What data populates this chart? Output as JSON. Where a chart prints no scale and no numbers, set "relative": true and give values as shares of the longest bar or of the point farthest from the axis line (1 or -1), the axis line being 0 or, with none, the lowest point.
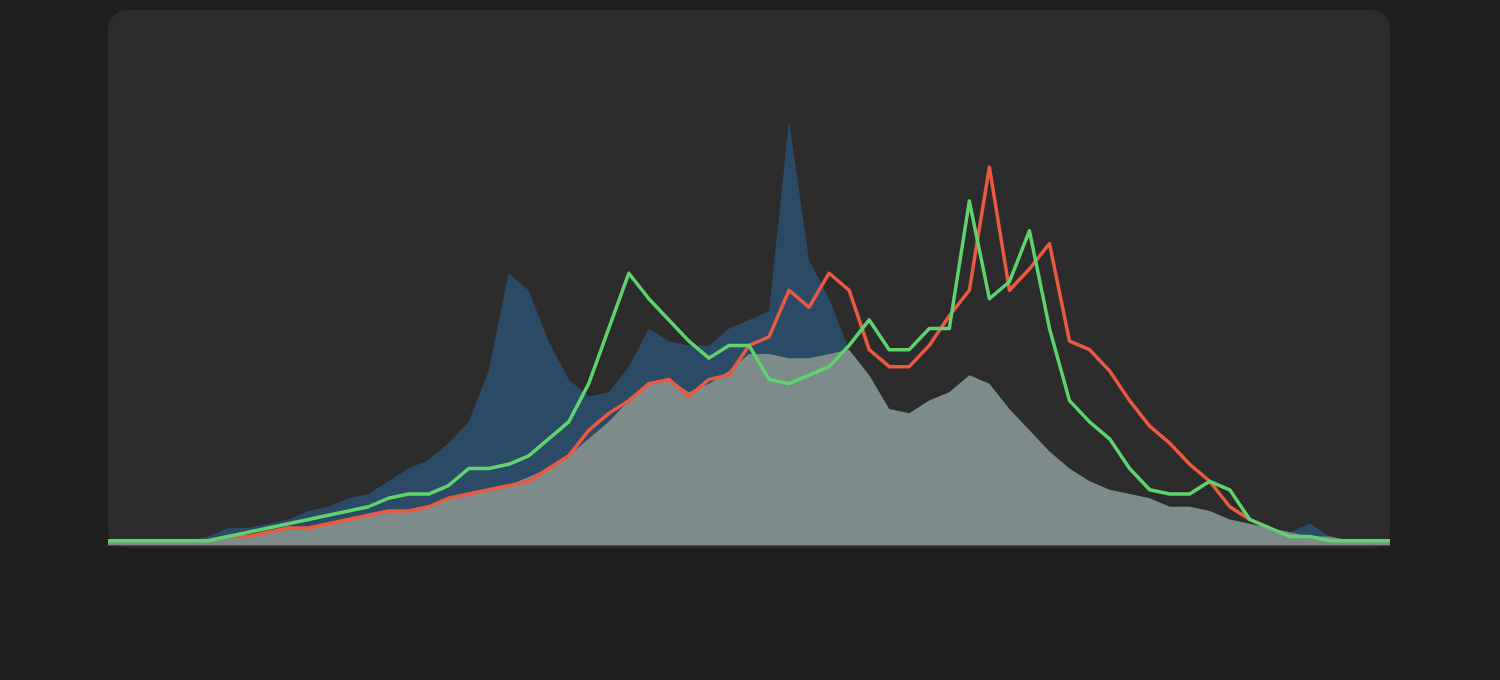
{
  "chart_data": {
    "type": "area",
    "relative": true,
    "categories": [
      null,
      null,
      null,
      null,
      null,
      null,
      null,
      null,
      null,
      null,
      null,
      null,
      null,
      null,
      null,
      null,
      null,
      null,
      null,
      null,
      null,
      null,
      null,
      null,
      null,
      null,
      null,
      null,
      null,
      null,
      null,
      null,
      null,
      null,
      null,
      null,
      null,
      null,
      null,
      null,
      null,
      null,
      null,
      null,
      null,
      null,
      null,
      null,
      null,
      null,
      null,
      null,
      null,
      null,
      null,
      null,
      null,
      null,
      null,
      null,
      null,
      null,
      null,
      null,
      null
    ],
    "series": [
      {
        "color": "#2b4a66",
        "values": [
          0.01,
          0.01,
          0.01,
          0.01,
          0.01,
          0.02,
          0.04,
          0.04,
          0.05,
          0.06,
          0.08,
          0.09,
          0.11,
          0.12,
          0.15,
          0.18,
          0.2,
          0.24,
          0.29,
          0.41,
          0.64,
          0.6,
          0.48,
          0.39,
          0.35,
          0.36,
          0.42,
          0.51,
          0.48,
          0.47,
          0.47,
          0.51,
          0.53,
          0.55,
          1,
          0.67,
          0.58,
          0.46,
          0.4,
          0.32,
          0.31,
          0.34,
          0.36,
          0.4,
          0.38,
          0.32,
          0.27,
          0.22,
          0.18,
          0.15,
          0.13,
          0.12,
          0.11,
          0.09,
          0.09,
          0.08,
          0.06,
          0.05,
          0.04,
          0.03,
          0.05,
          0.02,
          0.01,
          0.01,
          0.01
        ]
      },
      {
        "color": "#7d8b8b",
        "values": [
          0.01,
          0.01,
          0.01,
          0.01,
          0.01,
          0.01,
          0.02,
          0.02,
          0.03,
          0.04,
          0.04,
          0.05,
          0.06,
          0.07,
          0.08,
          0.08,
          0.09,
          0.11,
          0.12,
          0.13,
          0.14,
          0.16,
          0.18,
          0.21,
          0.25,
          0.29,
          0.34,
          0.38,
          0.39,
          0.36,
          0.38,
          0.41,
          0.45,
          0.45,
          0.44,
          0.44,
          0.45,
          0.46,
          0.4,
          0.32,
          0.31,
          0.34,
          0.36,
          0.4,
          0.38,
          0.32,
          0.27,
          0.22,
          0.18,
          0.15,
          0.13,
          0.12,
          0.11,
          0.09,
          0.09,
          0.08,
          0.06,
          0.05,
          0.04,
          0.03,
          0.02,
          0.02,
          0.01,
          0.01,
          0.01
        ]
      },
      {
        "type": "line",
        "color": "#ea5a43",
        "values": [
          null,
          null,
          null,
          null,
          null,
          0.01,
          0.02,
          0.02,
          0.03,
          0.04,
          0.04,
          0.05,
          0.06,
          0.07,
          0.08,
          0.08,
          0.09,
          0.11,
          0.12,
          0.13,
          0.14,
          0.15,
          0.18,
          0.21,
          0.27,
          0.31,
          0.34,
          0.38,
          0.39,
          0.35,
          0.39,
          0.4,
          0.47,
          0.49,
          0.6,
          0.56,
          0.64,
          0.6,
          0.46,
          0.42,
          0.42,
          0.47,
          0.54,
          0.6,
          0.89,
          0.6,
          0.65,
          0.71,
          0.48,
          0.46,
          0.41,
          0.34,
          0.28,
          0.24,
          0.19,
          0.15,
          0.09,
          0.06,
          0.04,
          null,
          null,
          null,
          null,
          null,
          null
        ]
      },
      {
        "type": "line",
        "color": "#5fd36e",
        "values": [
          0.01,
          0.01,
          0.01,
          0.01,
          0.01,
          0.01,
          0.02,
          0.03,
          0.04,
          0.05,
          0.06,
          0.07,
          0.08,
          0.09,
          0.11,
          0.12,
          0.12,
          0.14,
          0.18,
          0.18,
          0.19,
          0.21,
          0.25,
          0.29,
          0.38,
          0.51,
          0.64,
          0.58,
          0.53,
          0.48,
          0.44,
          0.47,
          0.47,
          0.39,
          0.38,
          0.4,
          0.42,
          0.47,
          0.53,
          0.46,
          0.46,
          0.51,
          0.51,
          0.81,
          0.58,
          0.62,
          0.74,
          0.51,
          0.34,
          0.29,
          0.25,
          0.18,
          0.13,
          0.12,
          0.12,
          0.15,
          0.13,
          0.06,
          0.04,
          0.02,
          0.02,
          0.01,
          0.01,
          0.01,
          0.01
        ]
      }
    ]
  }
}
